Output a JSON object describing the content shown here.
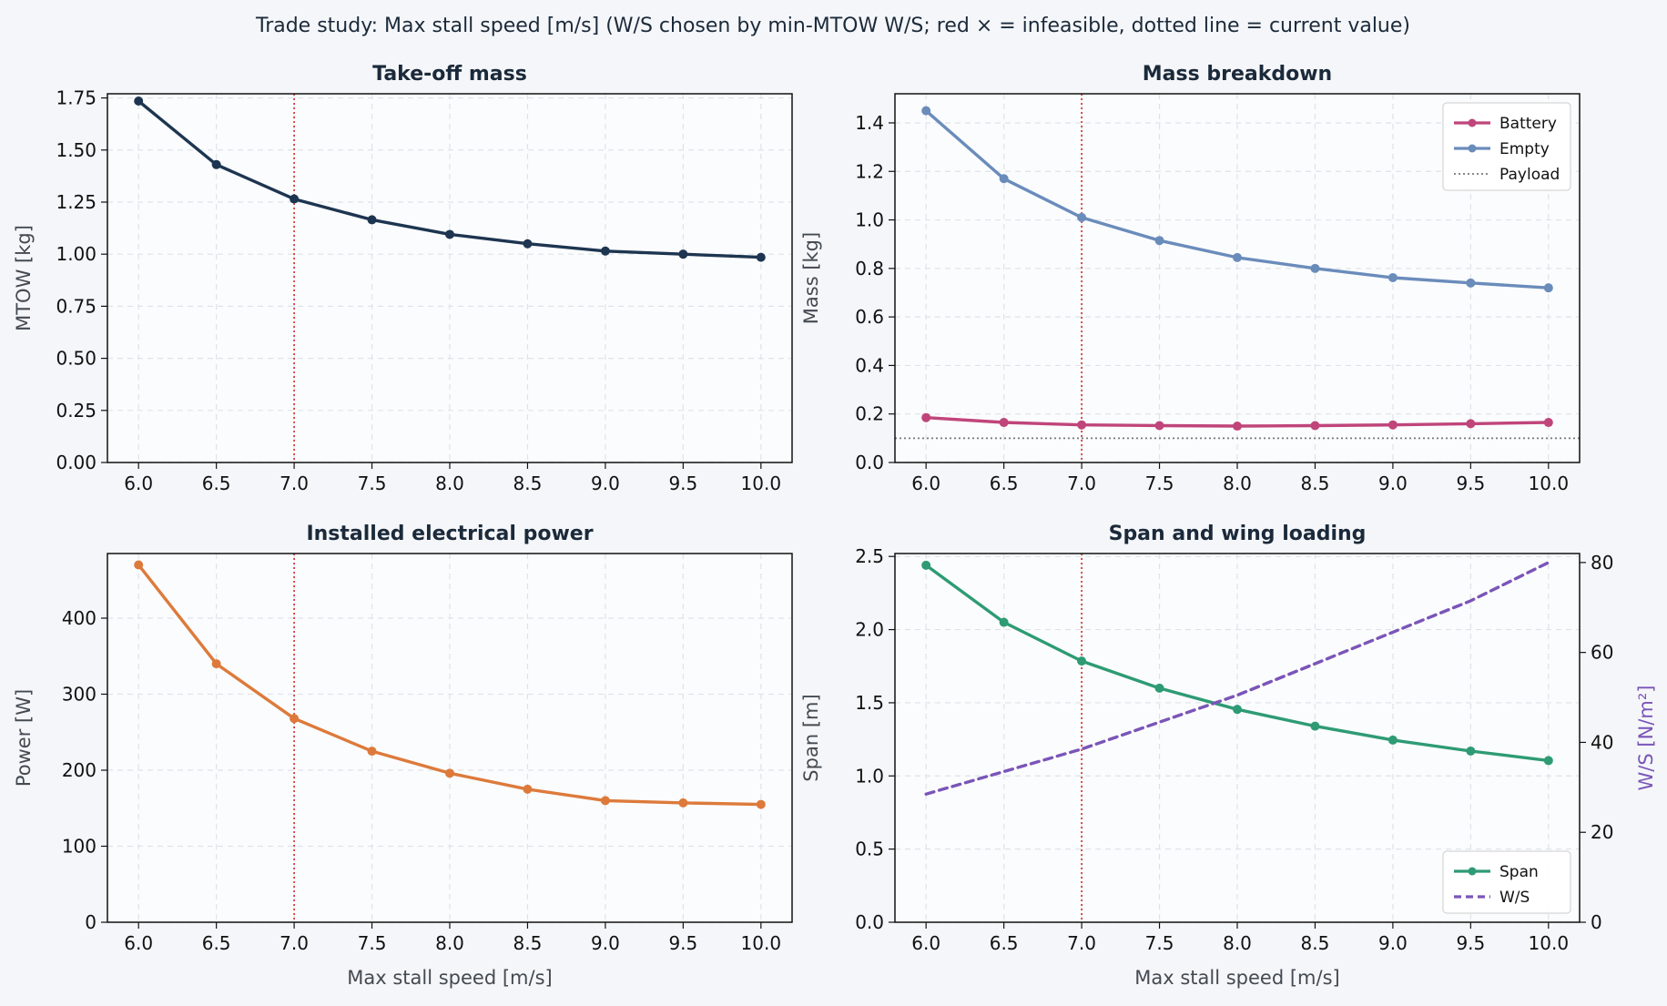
{
  "figure": {
    "suptitle": "Trade study: Max stall speed [m/s]   (W/S chosen by min-MTOW W/S; red × = infeasible, dotted line = current value)",
    "current_value": 7.0,
    "current_line_color": "#d62728"
  },
  "chart_data": [
    {
      "id": "takeoff",
      "type": "line",
      "title": "Take-off mass",
      "xlabel": "",
      "ylabel": "MTOW [kg]",
      "x": [
        6.0,
        6.5,
        7.0,
        7.5,
        8.0,
        8.5,
        9.0,
        9.5,
        10.0
      ],
      "x_ticks": [
        "6.0",
        "6.5",
        "7.0",
        "7.5",
        "8.0",
        "8.5",
        "9.0",
        "9.5",
        "10.0"
      ],
      "xlim": [
        5.8,
        10.2
      ],
      "ylim": [
        0,
        1.77
      ],
      "y_ticks": [
        "0.00",
        "0.25",
        "0.50",
        "0.75",
        "1.00",
        "1.25",
        "1.50",
        "1.75"
      ],
      "grid": true,
      "series": [
        {
          "values": [
            1.735,
            1.43,
            1.265,
            1.165,
            1.095,
            1.05,
            1.015,
            1.0,
            0.985
          ],
          "color": "#1d3550",
          "style": "solid",
          "markers": true
        }
      ]
    },
    {
      "id": "mass",
      "type": "line",
      "title": "Mass breakdown",
      "xlabel": "",
      "ylabel": "Mass [kg]",
      "x": [
        6.0,
        6.5,
        7.0,
        7.5,
        8.0,
        8.5,
        9.0,
        9.5,
        10.0
      ],
      "x_ticks": [
        "6.0",
        "6.5",
        "7.0",
        "7.5",
        "8.0",
        "8.5",
        "9.0",
        "9.5",
        "10.0"
      ],
      "xlim": [
        5.8,
        10.2
      ],
      "ylim": [
        0,
        1.52
      ],
      "y_ticks": [
        "0.0",
        "0.2",
        "0.4",
        "0.6",
        "0.8",
        "1.0",
        "1.2",
        "1.4"
      ],
      "grid": true,
      "legend": "top-right",
      "series": [
        {
          "name": "Battery",
          "values": [
            0.185,
            0.165,
            0.155,
            0.152,
            0.15,
            0.152,
            0.155,
            0.16,
            0.165
          ],
          "color": "#c0457a",
          "style": "solid",
          "markers": true
        },
        {
          "name": "Empty",
          "values": [
            1.45,
            1.17,
            1.01,
            0.915,
            0.845,
            0.8,
            0.762,
            0.74,
            0.72
          ],
          "color": "#6a8cbb",
          "style": "solid",
          "markers": true
        }
      ],
      "hlines": [
        {
          "name": "Payload",
          "value": 0.1,
          "color": "#777777",
          "style": "dotted"
        }
      ]
    },
    {
      "id": "power",
      "type": "line",
      "title": "Installed electrical power",
      "xlabel": "Max stall speed [m/s]",
      "ylabel": "Power [W]",
      "x": [
        6.0,
        6.5,
        7.0,
        7.5,
        8.0,
        8.5,
        9.0,
        9.5,
        10.0
      ],
      "x_ticks": [
        "6.0",
        "6.5",
        "7.0",
        "7.5",
        "8.0",
        "8.5",
        "9.0",
        "9.5",
        "10.0"
      ],
      "xlim": [
        5.8,
        10.2
      ],
      "ylim": [
        0,
        485
      ],
      "y_ticks": [
        "0",
        "100",
        "200",
        "300",
        "400"
      ],
      "grid": true,
      "series": [
        {
          "values": [
            470,
            340,
            268,
            225,
            196,
            175,
            160,
            157,
            155
          ],
          "color": "#dd7a3b",
          "style": "solid",
          "markers": true
        }
      ]
    },
    {
      "id": "span",
      "type": "line",
      "title": "Span and wing loading",
      "xlabel": "Max stall speed [m/s]",
      "ylabel": "Span [m]",
      "ylabel2": "W/S [N/m²]",
      "ylabel2_color": "#7a55b8",
      "x": [
        6.0,
        6.5,
        7.0,
        7.5,
        8.0,
        8.5,
        9.0,
        9.5,
        10.0
      ],
      "x_ticks": [
        "6.0",
        "6.5",
        "7.0",
        "7.5",
        "8.0",
        "8.5",
        "9.0",
        "9.5",
        "10.0"
      ],
      "xlim": [
        5.8,
        10.2
      ],
      "ylim": [
        0,
        2.52
      ],
      "y_ticks": [
        "0.0",
        "0.5",
        "1.0",
        "1.5",
        "2.0",
        "2.5"
      ],
      "ylim2": [
        0,
        82
      ],
      "y2_ticks": [
        "0",
        "20",
        "40",
        "60",
        "80"
      ],
      "grid": true,
      "legend": "bottom-right",
      "series": [
        {
          "name": "Span",
          "values": [
            2.44,
            2.05,
            1.785,
            1.6,
            1.455,
            1.34,
            1.245,
            1.17,
            1.105
          ],
          "color": "#2e9b74",
          "style": "solid",
          "markers": true,
          "axis": "left"
        },
        {
          "name": "W/S",
          "values": [
            28.5,
            33.5,
            38.5,
            44.5,
            50.5,
            57.5,
            64.5,
            71.5,
            80.0
          ],
          "color": "#7a55b8",
          "style": "dashed",
          "markers": false,
          "axis": "right"
        }
      ]
    }
  ]
}
